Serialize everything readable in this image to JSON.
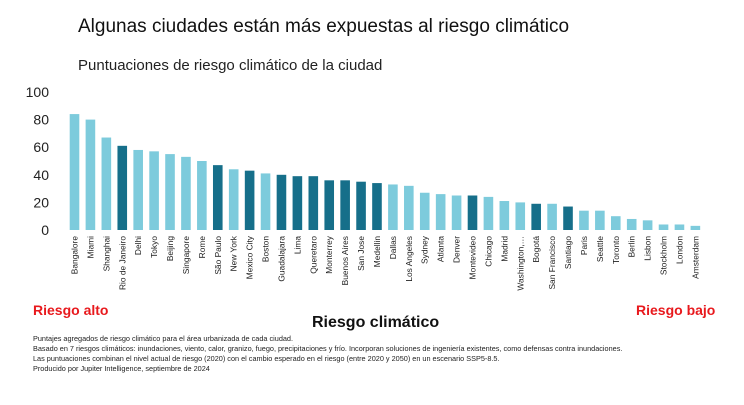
{
  "chart_data": {
    "type": "bar",
    "title": "Algunas ciudades están más expuestas al riesgo climático",
    "subtitle": "Puntuaciones de riesgo climático de la ciudad",
    "xlabel": "Riesgo climático",
    "ylabel": "",
    "ylim": [
      0,
      100
    ],
    "yticks": [
      "100",
      "80",
      "60",
      "40",
      "20",
      "0"
    ],
    "grid": false,
    "categories": [
      "Bangalore",
      "Miami",
      "Shanghai",
      "Rio de Janeiro",
      "Delhi",
      "Tokyo",
      "Beijing",
      "Singapore",
      "Rome",
      "São Paulo",
      "New York",
      "Mexico City",
      "Boston",
      "Guadalajara",
      "Lima",
      "Queretaro",
      "Monterrey",
      "Buenos Aires",
      "San Jose",
      "Medellin",
      "Dallas",
      "Los Angeles",
      "Sydney",
      "Atlanta",
      "Denver",
      "Montevideo",
      "Chicago",
      "Madrid",
      "Washington,…",
      "Bogotá",
      "San Francisco",
      "Santiago",
      "Paris",
      "Seattle",
      "Toronto",
      "Berlin",
      "Lisbon",
      "Stockholm",
      "London",
      "Amsterdam"
    ],
    "values": [
      84,
      80,
      67,
      61,
      58,
      57,
      55,
      53,
      50,
      47,
      44,
      43,
      41,
      40,
      39,
      39,
      36,
      36,
      35,
      34,
      33,
      32,
      27,
      26,
      25,
      25,
      24,
      21,
      20,
      19,
      19,
      17,
      14,
      14,
      10,
      8,
      7,
      4,
      4,
      3
    ],
    "highlight": [
      false,
      false,
      false,
      true,
      false,
      false,
      false,
      false,
      false,
      true,
      false,
      true,
      false,
      true,
      true,
      true,
      true,
      true,
      true,
      true,
      false,
      false,
      false,
      false,
      false,
      true,
      false,
      false,
      false,
      true,
      false,
      true,
      false,
      false,
      false,
      false,
      false,
      false,
      false,
      false
    ],
    "colors": {
      "default": "#7dcbdc",
      "highlight": "#166f8a",
      "axis_text": "#222222"
    }
  },
  "labels": {
    "high_risk": "Riesgo alto",
    "low_risk": "Riesgo bajo"
  },
  "notes": [
    "Puntajes agregados de riesgo climático para el área urbanizada de cada ciudad.",
    "Basado en 7 riesgos climáticos: inundaciones, viento, calor, granizo, fuego, precipitaciones y frío. Incorporan soluciones de ingeniería existentes, como defensas contra inundaciones.",
    "Las puntuaciones combinan el nivel actual de riesgo (2020) con el cambio esperado en el riesgo (entre 2020 y 2050) en un escenario SSP5-8.5.",
    "Producido por Jupiter Intelligence, septiembre de 2024"
  ]
}
